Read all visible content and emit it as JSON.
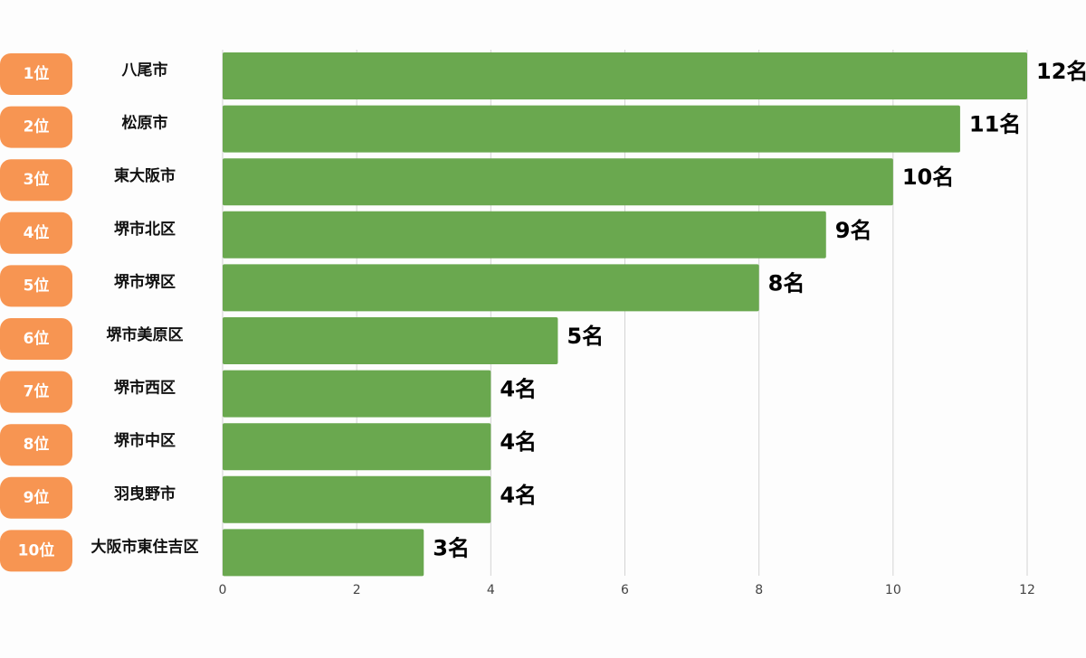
{
  "chart_data": {
    "type": "barh",
    "ranks": [
      "1位",
      "2位",
      "3位",
      "4位",
      "5位",
      "6位",
      "7位",
      "8位",
      "9位",
      "10位"
    ],
    "categories": [
      "八尾市",
      "松原市",
      "東大阪市",
      "堺市北区",
      "堺市堺区",
      "堺市美原区",
      "堺市西区",
      "堺市中区",
      "羽曳野市",
      "大阪市東住吉区"
    ],
    "values": [
      12,
      11,
      10,
      9,
      8,
      5,
      4,
      4,
      4,
      3
    ],
    "value_labels": [
      "12名",
      "11名",
      "10名",
      "9名",
      "8名",
      "5名",
      "4名",
      "4名",
      "4名",
      "3名"
    ],
    "color": "#6aa84f",
    "rank_color": "#f79552",
    "xlim": [
      0,
      12
    ],
    "xticks": [
      0,
      2,
      4,
      6,
      8,
      10,
      12
    ],
    "grid": true
  }
}
